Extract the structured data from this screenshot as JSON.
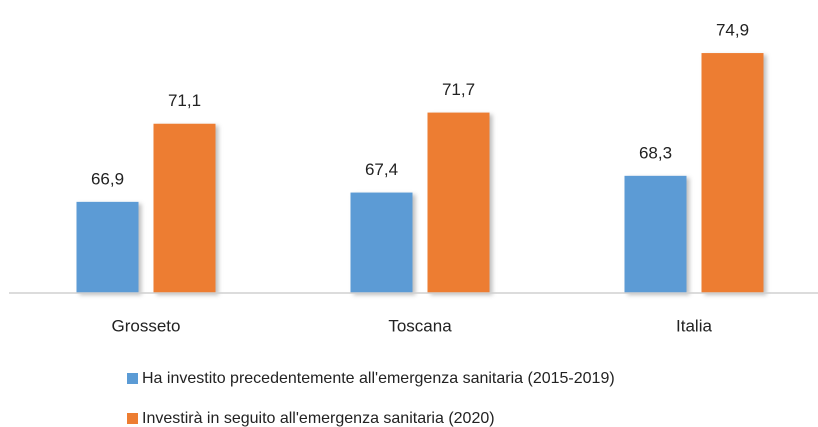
{
  "chart_data": {
    "type": "bar",
    "categories": [
      "Grosseto",
      "Toscana",
      "Italia"
    ],
    "series": [
      {
        "name": "Ha investito precedentemente all'emergenza sanitaria (2015-2019)",
        "color": "#5b9bd5",
        "values": [
          66.9,
          67.4,
          68.3
        ],
        "value_labels": [
          "66,9",
          "67,4",
          "68,3"
        ]
      },
      {
        "name": "Investirà in seguito all'emergenza sanitaria (2020)",
        "color": "#ed7d31",
        "values": [
          71.1,
          71.7,
          74.9
        ],
        "value_labels": [
          "71,1",
          "71,7",
          "74,9"
        ]
      }
    ],
    "ylim": [
      62,
      77
    ]
  }
}
